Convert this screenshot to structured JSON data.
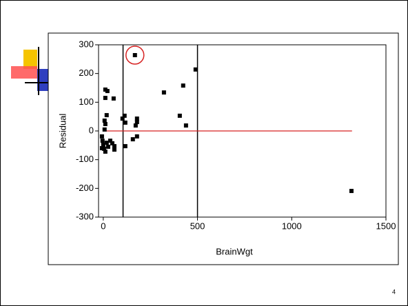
{
  "chart_data": {
    "type": "scatter",
    "xlabel": "BrainWgt",
    "ylabel": "Residual",
    "x": [
      168,
      490,
      424,
      322,
      406,
      439,
      1317,
      11,
      22,
      11,
      55,
      18,
      7,
      11,
      7,
      113,
      102,
      117,
      179,
      179,
      172,
      179,
      157,
      117,
      -7,
      -4,
      0,
      4,
      11,
      18,
      26,
      37,
      48,
      59,
      59,
      -7
    ],
    "values": [
      264,
      214,
      158,
      134,
      53,
      19,
      -209,
      144,
      139,
      115,
      113,
      55,
      36,
      24,
      5,
      53,
      43,
      29,
      43,
      31,
      19,
      -19,
      -29,
      -53,
      -19,
      -34,
      -48,
      -62,
      -72,
      -41,
      -55,
      -34,
      -43,
      -53,
      -65,
      -60
    ],
    "color": "#000000",
    "xlim": [
      -25,
      1500
    ],
    "xticks": [
      0,
      500,
      1000,
      1500
    ],
    "ylim": [
      -300,
      300
    ],
    "yticks": [
      -300,
      -200,
      -100,
      0,
      100,
      200,
      300
    ],
    "reference_lines_x": [
      105,
      500
    ],
    "fit_line": {
      "x": [
        0,
        1320
      ],
      "y": [
        0,
        0
      ],
      "color": "#d62020"
    },
    "highlight_color": "#d62020",
    "page_number": "4"
  }
}
